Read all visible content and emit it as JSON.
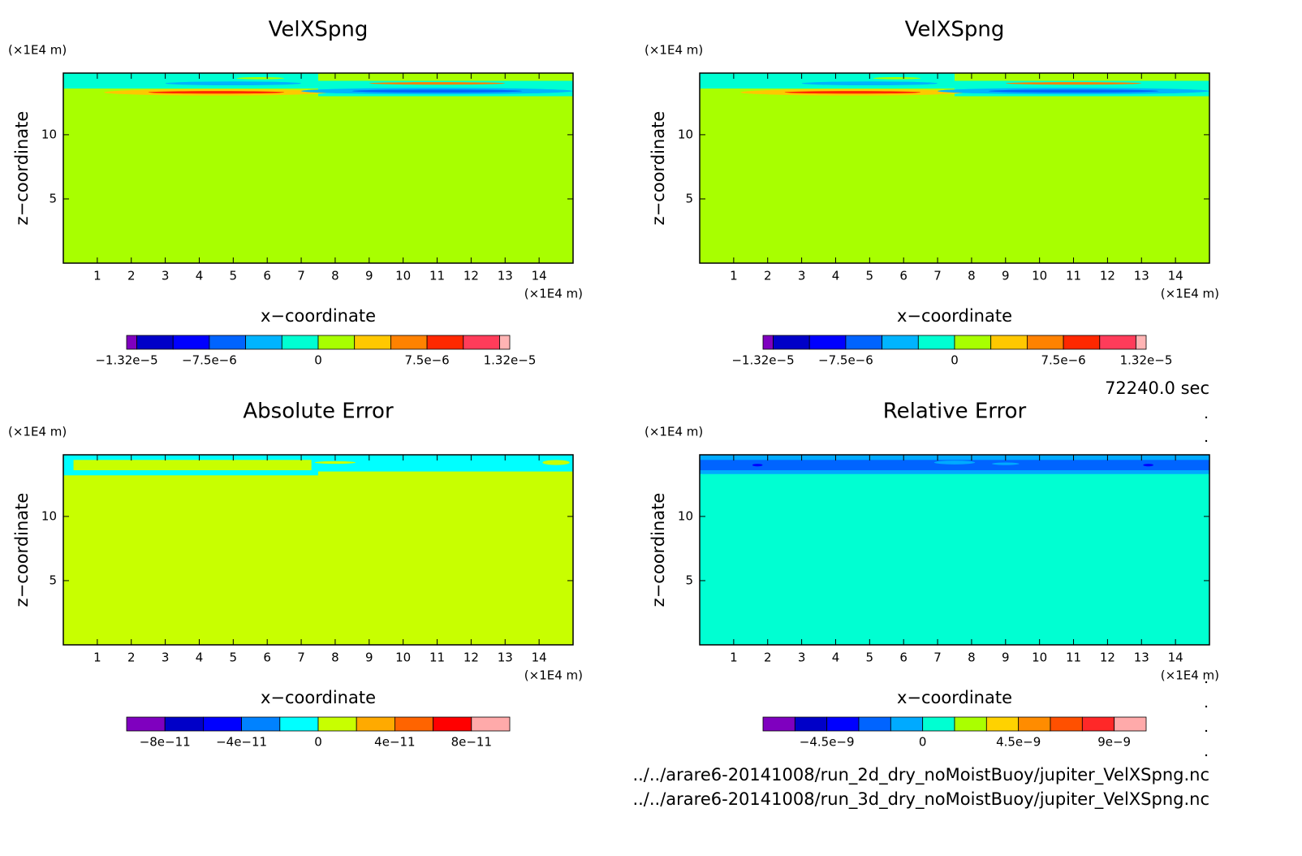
{
  "chart_data": [
    {
      "type": "contour",
      "title": "VelXSpng",
      "xlabel": "x−coordinate",
      "ylabel": "z−coordinate",
      "xunit": "(×1E4 m)",
      "yunit": "(×1E4 m)",
      "xlim": [
        0,
        15
      ],
      "ylim": [
        0,
        14.8
      ],
      "xticks": [
        1,
        2,
        3,
        4,
        5,
        6,
        7,
        8,
        9,
        10,
        11,
        12,
        13,
        14
      ],
      "yticks": [
        5,
        10
      ],
      "colorbar": {
        "levels": [
          -1.32e-05,
          -1.25e-05,
          -1e-05,
          -7.5e-06,
          -5e-06,
          -2.5e-06,
          0,
          2.5e-06,
          5e-06,
          7.5e-06,
          1e-05,
          1.25e-05,
          1.32e-05
        ],
        "colors": [
          "#7f00bf",
          "#0000c8",
          "#0000ff",
          "#0064ff",
          "#00b4ff",
          "#00ffd2",
          "#a8ff00",
          "#ffc800",
          "#ff8200",
          "#ff2800",
          "#ff3c5a",
          "#ffb4b4"
        ],
        "ticks": [
          {
            "value": -1.32e-05,
            "label": "−1.32e−5"
          },
          {
            "value": -7.5e-06,
            "label": "−7.5e−6"
          },
          0,
          {
            "value": 7.5e-06,
            "label": "7.5e−6"
          },
          {
            "value": 1.32e-05,
            "label": "1.32e−5"
          }
        ]
      }
    },
    {
      "type": "contour",
      "title": "VelXSpng",
      "xlabel": "x−coordinate",
      "ylabel": "z−coordinate",
      "xunit": "(×1E4 m)",
      "yunit": "(×1E4 m)",
      "xlim": [
        0,
        15
      ],
      "ylim": [
        0,
        14.8
      ],
      "xticks": [
        1,
        2,
        3,
        4,
        5,
        6,
        7,
        8,
        9,
        10,
        11,
        12,
        13,
        14
      ],
      "yticks": [
        5,
        10
      ],
      "colorbar": {
        "levels": [
          -1.32e-05,
          -1.25e-05,
          -1e-05,
          -7.5e-06,
          -5e-06,
          -2.5e-06,
          0,
          2.5e-06,
          5e-06,
          7.5e-06,
          1e-05,
          1.25e-05,
          1.32e-05
        ],
        "colors": [
          "#7f00bf",
          "#0000c8",
          "#0000ff",
          "#0064ff",
          "#00b4ff",
          "#00ffd2",
          "#a8ff00",
          "#ffc800",
          "#ff8200",
          "#ff2800",
          "#ff3c5a",
          "#ffb4b4"
        ],
        "ticks": [
          {
            "value": -1.32e-05,
            "label": "−1.32e−5"
          },
          {
            "value": -7.5e-06,
            "label": "−7.5e−6"
          },
          0,
          {
            "value": 7.5e-06,
            "label": "7.5e−6"
          },
          {
            "value": 1.32e-05,
            "label": "1.32e−5"
          }
        ]
      }
    },
    {
      "type": "contour",
      "title": "Absolute Error",
      "xlabel": "x−coordinate",
      "ylabel": "z−coordinate",
      "xunit": "(×1E4 m)",
      "yunit": "(×1E4 m)",
      "xlim": [
        0,
        15
      ],
      "ylim": [
        0,
        14.8
      ],
      "xticks": [
        1,
        2,
        3,
        4,
        5,
        6,
        7,
        8,
        9,
        10,
        11,
        12,
        13,
        14
      ],
      "yticks": [
        5,
        10
      ],
      "colorbar": {
        "levels": [
          -1e-10,
          -8e-11,
          -6e-11,
          -4e-11,
          -2e-11,
          0,
          2e-11,
          4e-11,
          6e-11,
          8e-11,
          1e-10
        ],
        "colors": [
          "#7f00bf",
          "#0000c8",
          "#0000ff",
          "#0082ff",
          "#00ffff",
          "#c8ff00",
          "#ffaa00",
          "#ff6400",
          "#ff0000",
          "#ffaaaa"
        ],
        "ticks": [
          {
            "value": -8e-11,
            "label": "−8e−11"
          },
          {
            "value": -4e-11,
            "label": "−4e−11"
          },
          0,
          {
            "value": 4e-11,
            "label": "4e−11"
          },
          {
            "value": 8e-11,
            "label": "8e−11"
          }
        ]
      }
    },
    {
      "type": "contour",
      "title": "Relative Error",
      "xlabel": "x−coordinate",
      "ylabel": "z−coordinate",
      "xunit": "(×1E4 m)",
      "yunit": "(×1E4 m)",
      "xlim": [
        0,
        15
      ],
      "ylim": [
        0,
        14.8
      ],
      "xticks": [
        1,
        2,
        3,
        4,
        5,
        6,
        7,
        8,
        9,
        10,
        11,
        12,
        13,
        14
      ],
      "yticks": [
        5,
        10
      ],
      "colorbar": {
        "levels": [
          -7.5e-09,
          -6e-09,
          -4.5e-09,
          -3e-09,
          -1.5e-09,
          0,
          1.5e-09,
          3e-09,
          4.5e-09,
          6e-09,
          7.5e-09,
          9e-09,
          1.05e-08
        ],
        "colors": [
          "#7f00bf",
          "#0000c8",
          "#0000ff",
          "#0064ff",
          "#00aaff",
          "#00ffd2",
          "#aaff00",
          "#ffd200",
          "#ff8c00",
          "#ff5000",
          "#ff2828",
          "#ffaaaa"
        ],
        "ticks": [
          {
            "value": -4.5e-09,
            "label": "−4.5e−9"
          },
          0,
          {
            "value": 4.5e-09,
            "label": "4.5e−9"
          },
          {
            "value": 9e-09,
            "label": "9e−9"
          }
        ]
      }
    }
  ],
  "annotations": {
    "time": "72240.0 sec",
    "files": [
      "../../arare6-20141008/run_2d_dry_noMoistBuoy/jupiter_VelXSpng.nc",
      "../../arare6-20141008/run_3d_dry_noMoistBuoy/jupiter_VelXSpng.nc"
    ]
  }
}
